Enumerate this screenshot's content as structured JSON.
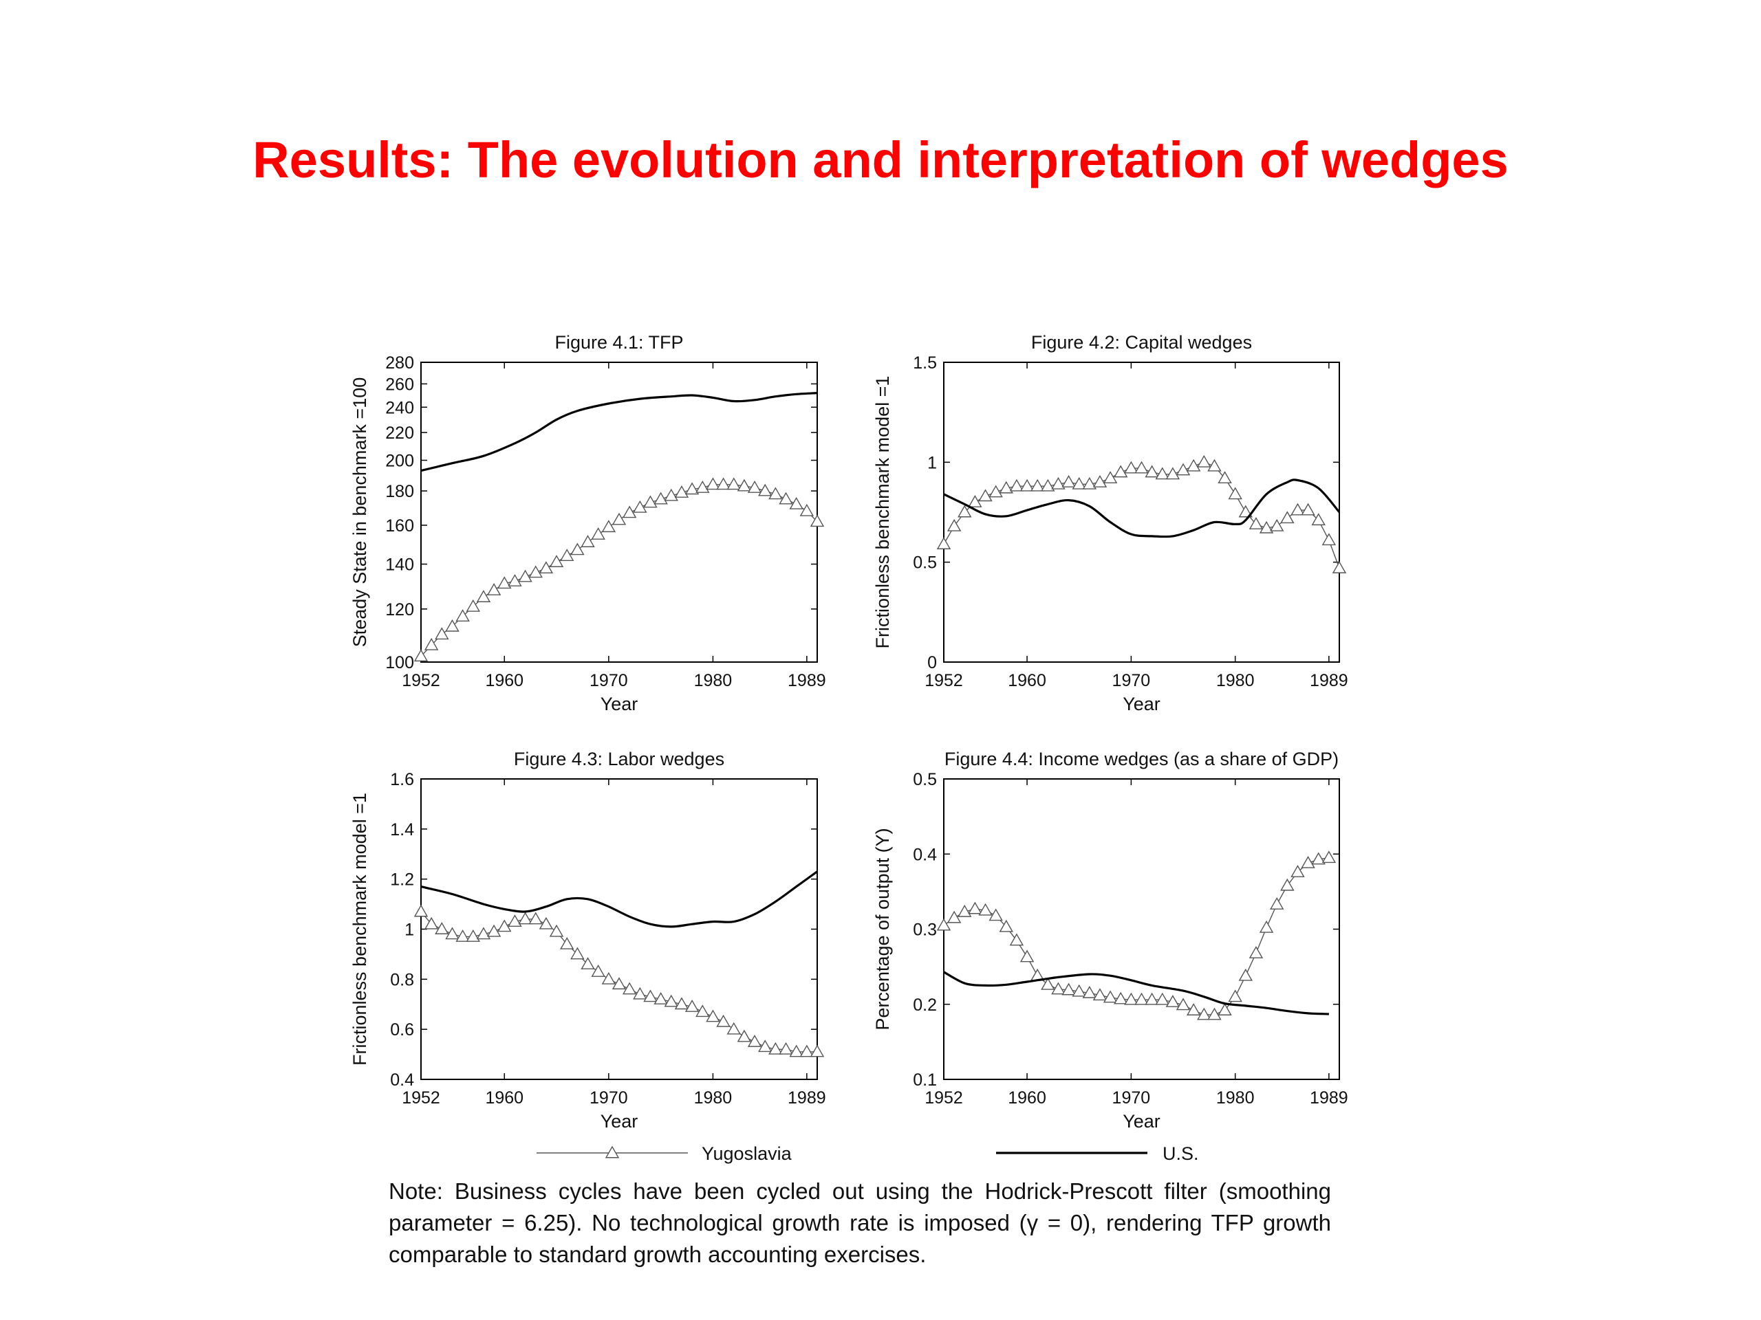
{
  "slide_title": "Results: The evolution and interpretation of wedges",
  "note": "Note: Business cycles have been cycled out using the Hodrick-Prescott filter (smoothing parameter = 6.25). No technological growth rate is imposed (γ = 0), rendering TFP growth comparable to standard growth accounting exercises.",
  "legend": [
    {
      "label": "Yugoslavia",
      "style": "thin-line-triangles"
    },
    {
      "label": "U.S.",
      "style": "thick-line"
    }
  ],
  "chart_data": [
    {
      "type": "line",
      "title": "Figure 4.1: TFP",
      "xlabel": "Year",
      "ylabel": "Steady State in benchmark =100",
      "xlim": [
        1952,
        1990
      ],
      "ylim": [
        100,
        280
      ],
      "y_scale": "log",
      "xticks": [
        1952,
        1960,
        1970,
        1980,
        1989
      ],
      "yticks": [
        100,
        120,
        140,
        160,
        180,
        200,
        220,
        240,
        260,
        280
      ],
      "series": [
        {
          "name": "Yugoslavia",
          "marker": "triangle",
          "x": [
            1952,
            1953,
            1954,
            1955,
            1956,
            1957,
            1958,
            1959,
            1960,
            1961,
            1962,
            1963,
            1964,
            1965,
            1966,
            1967,
            1968,
            1969,
            1970,
            1971,
            1972,
            1973,
            1974,
            1975,
            1976,
            1977,
            1978,
            1979,
            1980,
            1981,
            1982,
            1983,
            1984,
            1985,
            1986,
            1987,
            1988,
            1989,
            1990
          ],
          "y": [
            102,
            106,
            110,
            113,
            117,
            121,
            125,
            128,
            131,
            132,
            134,
            136,
            138,
            141,
            144,
            147,
            151,
            155,
            159,
            163,
            167,
            170,
            173,
            175,
            177,
            179,
            181,
            182,
            184,
            184,
            184,
            183,
            182,
            180,
            178,
            175,
            172,
            168,
            162
          ]
        },
        {
          "name": "U.S.",
          "x": [
            1952,
            1955,
            1958,
            1961,
            1963,
            1965,
            1967,
            1970,
            1973,
            1976,
            1978,
            1980,
            1982,
            1984,
            1986,
            1988,
            1990
          ],
          "y": [
            193,
            198,
            203,
            212,
            220,
            230,
            237,
            243,
            247,
            249,
            250,
            248,
            245,
            246,
            249,
            251,
            252
          ]
        }
      ]
    },
    {
      "type": "line",
      "title": "Figure 4.2: Capital wedges",
      "xlabel": "Year",
      "ylabel": "Frictionless benchmark model =1",
      "xlim": [
        1952,
        1990
      ],
      "ylim": [
        0,
        1.5
      ],
      "xticks": [
        1952,
        1960,
        1970,
        1980,
        1989
      ],
      "yticks": [
        0,
        0.5,
        1,
        1.5
      ],
      "series": [
        {
          "name": "Yugoslavia",
          "marker": "triangle",
          "x": [
            1952,
            1953,
            1954,
            1955,
            1956,
            1957,
            1958,
            1959,
            1960,
            1961,
            1962,
            1963,
            1964,
            1965,
            1966,
            1967,
            1968,
            1969,
            1970,
            1971,
            1972,
            1973,
            1974,
            1975,
            1976,
            1977,
            1978,
            1979,
            1980,
            1981,
            1982,
            1983,
            1984,
            1985,
            1986,
            1987,
            1988,
            1989,
            1990
          ],
          "y": [
            0.59,
            0.68,
            0.75,
            0.8,
            0.83,
            0.85,
            0.87,
            0.88,
            0.88,
            0.88,
            0.88,
            0.89,
            0.9,
            0.89,
            0.89,
            0.9,
            0.92,
            0.95,
            0.97,
            0.97,
            0.95,
            0.94,
            0.94,
            0.96,
            0.98,
            1.0,
            0.98,
            0.92,
            0.84,
            0.75,
            0.69,
            0.67,
            0.68,
            0.72,
            0.76,
            0.76,
            0.71,
            0.61,
            0.47
          ]
        },
        {
          "name": "U.S.",
          "x": [
            1952,
            1954,
            1956,
            1958,
            1960,
            1962,
            1964,
            1966,
            1968,
            1970,
            1972,
            1974,
            1976,
            1978,
            1980,
            1981,
            1983,
            1985,
            1986,
            1988,
            1990
          ],
          "y": [
            0.84,
            0.79,
            0.74,
            0.73,
            0.76,
            0.79,
            0.81,
            0.78,
            0.7,
            0.64,
            0.63,
            0.63,
            0.66,
            0.7,
            0.69,
            0.71,
            0.84,
            0.9,
            0.91,
            0.87,
            0.75
          ]
        }
      ]
    },
    {
      "type": "line",
      "title": "Figure 4.3: Labor wedges",
      "xlabel": "Year",
      "ylabel": "Frictionless benchmark model =1",
      "xlim": [
        1952,
        1990
      ],
      "ylim": [
        0.4,
        1.6
      ],
      "xticks": [
        1952,
        1960,
        1970,
        1980,
        1989
      ],
      "yticks": [
        0.4,
        0.6,
        0.8,
        1,
        1.2,
        1.4,
        1.6
      ],
      "series": [
        {
          "name": "Yugoslavia",
          "marker": "triangle",
          "x": [
            1952,
            1953,
            1954,
            1955,
            1956,
            1957,
            1958,
            1959,
            1960,
            1961,
            1962,
            1963,
            1964,
            1965,
            1966,
            1967,
            1968,
            1969,
            1970,
            1971,
            1972,
            1973,
            1974,
            1975,
            1976,
            1977,
            1978,
            1979,
            1980,
            1981,
            1982,
            1983,
            1984,
            1985,
            1986,
            1987,
            1988,
            1989,
            1990
          ],
          "y": [
            1.07,
            1.02,
            1.0,
            0.98,
            0.97,
            0.97,
            0.98,
            0.99,
            1.01,
            1.03,
            1.04,
            1.04,
            1.02,
            0.99,
            0.94,
            0.9,
            0.86,
            0.83,
            0.8,
            0.78,
            0.76,
            0.74,
            0.73,
            0.72,
            0.71,
            0.7,
            0.69,
            0.67,
            0.65,
            0.63,
            0.6,
            0.57,
            0.55,
            0.53,
            0.52,
            0.52,
            0.51,
            0.51,
            0.51
          ]
        },
        {
          "name": "U.S.",
          "x": [
            1952,
            1955,
            1958,
            1960,
            1962,
            1964,
            1966,
            1968,
            1970,
            1972,
            1974,
            1976,
            1978,
            1980,
            1982,
            1984,
            1986,
            1988,
            1990
          ],
          "y": [
            1.17,
            1.14,
            1.1,
            1.08,
            1.07,
            1.09,
            1.12,
            1.12,
            1.09,
            1.05,
            1.02,
            1.01,
            1.02,
            1.03,
            1.03,
            1.06,
            1.11,
            1.17,
            1.23
          ]
        }
      ]
    },
    {
      "type": "line",
      "title": "Figure 4.4: Income wedges (as a share of GDP)",
      "xlabel": "Year",
      "ylabel": "Percentage of output (Y)",
      "xlim": [
        1952,
        1990
      ],
      "ylim": [
        0.1,
        0.5
      ],
      "xticks": [
        1952,
        1960,
        1970,
        1980,
        1989
      ],
      "yticks": [
        0.1,
        0.2,
        0.3,
        0.4,
        0.5
      ],
      "series": [
        {
          "name": "Yugoslavia",
          "marker": "triangle",
          "x": [
            1952,
            1953,
            1954,
            1955,
            1956,
            1957,
            1958,
            1959,
            1960,
            1961,
            1962,
            1963,
            1964,
            1965,
            1966,
            1967,
            1968,
            1969,
            1970,
            1971,
            1972,
            1973,
            1974,
            1975,
            1976,
            1977,
            1978,
            1979,
            1980,
            1981,
            1982,
            1983,
            1984,
            1985,
            1986,
            1987,
            1988,
            1989
          ],
          "y": [
            0.305,
            0.315,
            0.323,
            0.327,
            0.325,
            0.318,
            0.303,
            0.285,
            0.263,
            0.238,
            0.226,
            0.22,
            0.219,
            0.217,
            0.215,
            0.212,
            0.209,
            0.207,
            0.206,
            0.206,
            0.206,
            0.206,
            0.203,
            0.199,
            0.192,
            0.186,
            0.186,
            0.192,
            0.21,
            0.238,
            0.268,
            0.302,
            0.333,
            0.358,
            0.376,
            0.388,
            0.393,
            0.395
          ]
        },
        {
          "name": "U.S.",
          "x": [
            1952,
            1954,
            1956,
            1958,
            1960,
            1963,
            1966,
            1968,
            1970,
            1972,
            1975,
            1977,
            1979,
            1981,
            1983,
            1985,
            1987,
            1989
          ],
          "y": [
            0.243,
            0.228,
            0.225,
            0.226,
            0.23,
            0.236,
            0.24,
            0.238,
            0.232,
            0.225,
            0.218,
            0.21,
            0.201,
            0.198,
            0.195,
            0.191,
            0.188,
            0.187
          ]
        }
      ]
    }
  ]
}
